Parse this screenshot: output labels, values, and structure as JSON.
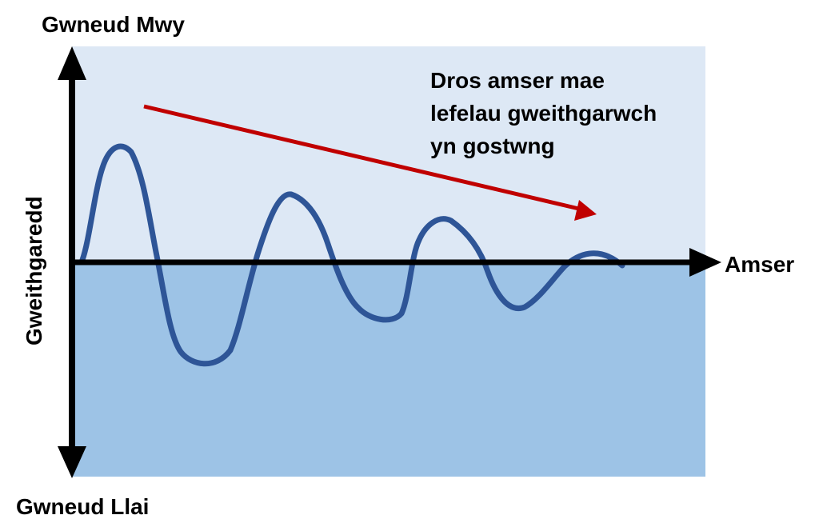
{
  "labels": {
    "top": "Gwneud Mwy",
    "bottom": "Gwneud Llai",
    "y_axis": "Gweithgaredd",
    "x_axis": "Amser",
    "trend_note": [
      "Dros amser mae",
      "lefelau gweithgarwch",
      "yn gostwng"
    ]
  },
  "colors": {
    "upper_region": "#dde8f5",
    "lower_region": "#9dc3e6",
    "wave": "#2e5597",
    "trend_arrow": "#c00000",
    "axes": "#000000"
  }
}
